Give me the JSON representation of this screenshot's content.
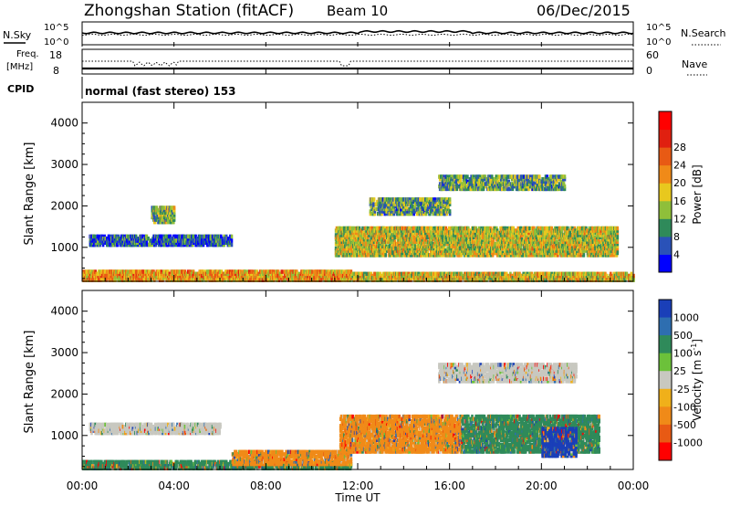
{
  "header": {
    "station": "Zhongshan Station (fitACF)",
    "beam": "Beam 10",
    "date": "06/Dec/2015"
  },
  "top_panels": {
    "nsky_label": "N.Sky",
    "nsky_ticks": [
      "10^5",
      "10^0"
    ],
    "nsearch_label": "N.Search",
    "nsearch_ticks": [
      "10^5",
      "10^0"
    ],
    "freq_label_1": "Freq.",
    "freq_label_2": "[MHz]",
    "freq_ticks": [
      "18",
      "8"
    ],
    "nave_label": "Nave",
    "nave_ticks": [
      "60",
      "0"
    ],
    "cpid_label": "CPID",
    "cpid_text": "normal (fast stereo) 153"
  },
  "chart_data": [
    {
      "type": "heatmap",
      "quantity": "Power",
      "ylabel": "Slant Range [km]",
      "ylim": [
        180,
        4500
      ],
      "yticks": [
        "1000",
        "2000",
        "3000",
        "4000"
      ],
      "colorbar_label": "Power [dB]",
      "colorbar_ticks": [
        "4",
        "8",
        "12",
        "16",
        "20",
        "24",
        "28"
      ],
      "colorbar_colors": [
        "#0000ff",
        "#2a52b8",
        "#2f8a5a",
        "#8fbf3a",
        "#e8c81e",
        "#f08a18",
        "#e85a14",
        "#e02010",
        "#ff0000"
      ],
      "echo_regions": [
        {
          "t0": 0.0,
          "t1": 11.7,
          "r0": 200,
          "r1": 450,
          "level": 0.6
        },
        {
          "t0": 11.7,
          "t1": 24.0,
          "r0": 200,
          "r1": 400,
          "level": 0.5
        },
        {
          "t0": 0.3,
          "t1": 6.5,
          "r0": 1050,
          "r1": 1300,
          "level": 0.15
        },
        {
          "t0": 11.0,
          "t1": 23.3,
          "r0": 800,
          "r1": 1500,
          "level": 0.45
        },
        {
          "t0": 15.5,
          "t1": 21.0,
          "r0": 2400,
          "r1": 2750,
          "level": 0.3
        },
        {
          "t0": 12.5,
          "t1": 16.0,
          "r0": 1800,
          "r1": 2200,
          "level": 0.3
        },
        {
          "t0": 3.0,
          "t1": 4.0,
          "r0": 1600,
          "r1": 2000,
          "level": 0.35
        }
      ]
    },
    {
      "type": "heatmap",
      "quantity": "Velocity",
      "xlabel": "Time UT",
      "ylabel": "Slant Range [km]",
      "ylim": [
        180,
        4500
      ],
      "yticks": [
        "1000",
        "2000",
        "3000",
        "4000"
      ],
      "xlim": [
        0,
        24
      ],
      "xticks": [
        "00:00",
        "04:00",
        "08:00",
        "12:00",
        "16:00",
        "20:00",
        "00:00"
      ],
      "colorbar_label": "Velocity [m s",
      "colorbar_label_exp": "-1",
      "colorbar_ticks": [
        "1000",
        "500",
        "100",
        "25",
        "-25",
        "-100",
        "-500",
        "-1000"
      ],
      "colorbar_colors": [
        "#1a3fb8",
        "#2e6eb0",
        "#2f8a5a",
        "#6cc13a",
        "#c8c8c0",
        "#f0b01a",
        "#f08a18",
        "#e85a14",
        "#ff0000"
      ],
      "echo_regions": [
        {
          "t0": 0.0,
          "t1": 11.7,
          "r0": 200,
          "r1": 400,
          "level": "#2f8a5a"
        },
        {
          "t0": 6.5,
          "t1": 11.7,
          "r0": 300,
          "r1": 650,
          "level": "#f08a18"
        },
        {
          "t0": 11.2,
          "t1": 16.5,
          "r0": 600,
          "r1": 1500,
          "level": "#f08a18"
        },
        {
          "t0": 15.5,
          "t1": 21.5,
          "r0": 2300,
          "r1": 2750,
          "level": "#c8c8c0"
        },
        {
          "t0": 16.5,
          "t1": 22.5,
          "r0": 600,
          "r1": 1500,
          "level": "#2f8a5a"
        },
        {
          "t0": 20.0,
          "t1": 21.5,
          "r0": 500,
          "r1": 1200,
          "level": "#1a3fb8"
        },
        {
          "t0": 0.3,
          "t1": 6.0,
          "r0": 1050,
          "r1": 1300,
          "level": "#c8c8c0"
        }
      ]
    }
  ]
}
